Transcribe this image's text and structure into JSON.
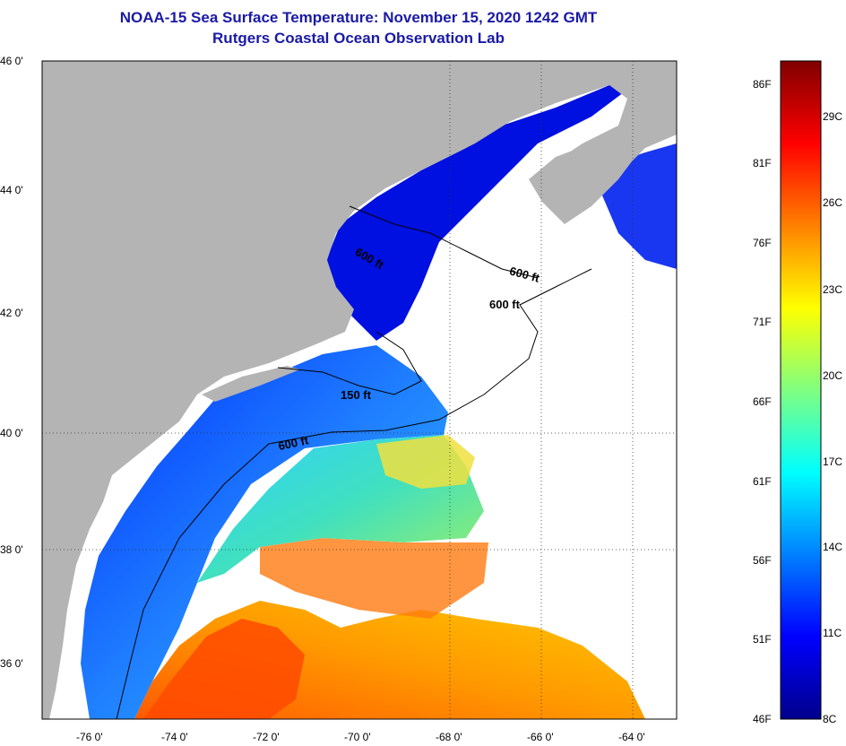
{
  "header": {
    "title": "NOAA-15 Sea Surface Temperature:  November 15, 2020 1242 GMT",
    "subtitle": "Rutgers Coastal Ocean Observation Lab"
  },
  "map": {
    "lat_labels": [
      "46 0'",
      "44 0'",
      "42 0'",
      "40 0'",
      "38 0'",
      "36 0'"
    ],
    "lon_labels": [
      "-76 0'",
      "-74 0'",
      "-72 0'",
      "-70 0'",
      "-68 0'",
      "-66 0'",
      "-64 0'"
    ],
    "contour_labels": [
      "600 ft",
      "600 ft",
      "600 ft",
      "150 ft",
      "600 ft"
    ],
    "colors": {
      "land": "#b4b4b4",
      "cloud": "#ffffff"
    }
  },
  "colorbar": {
    "fahrenheit": [
      "86F",
      "81F",
      "76F",
      "71F",
      "66F",
      "61F",
      "56F",
      "51F",
      "46F"
    ],
    "celsius": [
      "29C",
      "26C",
      "23C",
      "20C",
      "17C",
      "14C",
      "11C",
      "8C"
    ],
    "stops": [
      "#00008b",
      "#0000ff",
      "#0080ff",
      "#00ffff",
      "#80ff80",
      "#ffff00",
      "#ff8000",
      "#ff0000",
      "#800000"
    ]
  }
}
